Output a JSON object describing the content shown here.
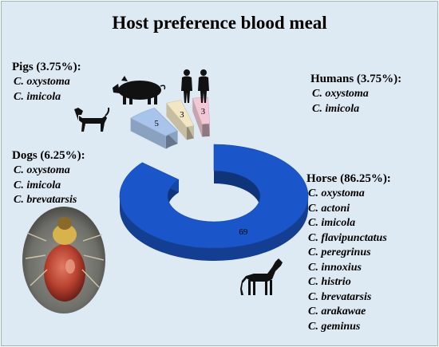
{
  "title": "Host preference blood meal",
  "chart_data": {
    "type": "pie",
    "style": "3d-donut-exploded",
    "title": "Host preference blood meal",
    "slices": [
      {
        "label": "Horse",
        "value": 69,
        "percent_label": "Horse (86.25%):",
        "color": "#1a56c9",
        "species": [
          "C. oxystoma",
          "C. actoni",
          "C. imicola",
          "C. flavipunctatus",
          "C. peregrinus",
          "C. innoxius",
          "C. histrio",
          "C. brevatarsis",
          "C. arakawae",
          "C. geminus"
        ]
      },
      {
        "label": "Dogs",
        "value": 5,
        "percent_label": "Dogs (6.25%):",
        "color": "#a9c4ea",
        "species": [
          "C. oxystoma",
          "C. imicola",
          "C. brevatarsis"
        ]
      },
      {
        "label": "Pigs",
        "value": 3,
        "percent_label": "Pigs (3.75%):",
        "color": "#f3e6c4",
        "species": [
          "C. oxystoma",
          "C. imicola"
        ]
      },
      {
        "label": "Humans",
        "value": 3,
        "percent_label": "Humans (3.75%):",
        "color": "#f2c8d6",
        "species": [
          "C. oxystoma",
          "C. imicola"
        ]
      }
    ]
  },
  "icons": [
    "pig-silhouette-icon",
    "humans-silhouette-icon",
    "dog-silhouette-icon",
    "horse-silhouette-icon",
    "culicoides-photo"
  ]
}
